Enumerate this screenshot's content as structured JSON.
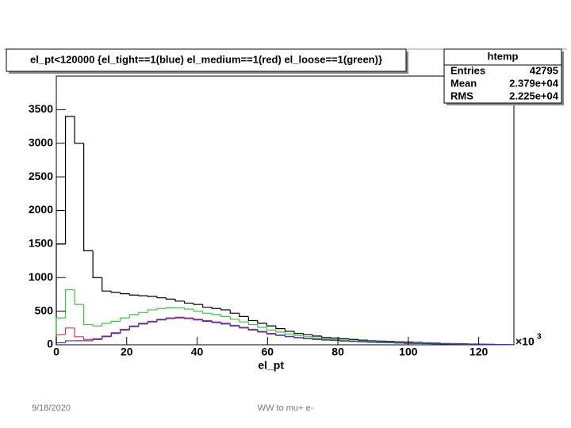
{
  "chart_data": {
    "type": "histogram",
    "title": "el_pt<120000 {el_tight==1(blue) el_medium==1(red) el_loose==1(green)}",
    "x_label": "el_pt",
    "x_multiplier": "×10",
    "x_multiplier_exponent": "3",
    "stats": {
      "name": "htemp",
      "labels": [
        "Entries",
        "Mean",
        "RMS"
      ],
      "values": [
        42795,
        "2.379e+04",
        "2.225e+04"
      ]
    },
    "bins": [
      0,
      2.6,
      5.2,
      7.8,
      10.4,
      13,
      15.6,
      18.2,
      20.8,
      23.4,
      26,
      28.6,
      31.2,
      33.8,
      36.4,
      39,
      41.6,
      44.2,
      46.8,
      49.4,
      52,
      54.6,
      57.2,
      59.8,
      62.4,
      65,
      67.6,
      70.2,
      72.8,
      75.4,
      78,
      80.6,
      83.2,
      85.8,
      88.4,
      91,
      93.6,
      96.2,
      98.8,
      101.4,
      104,
      106.6,
      109.2,
      111.8,
      114.4,
      117,
      119.6,
      122.2,
      124.8,
      127.4,
      130
    ],
    "series": [
      {
        "color": "#000000",
        "values": [
          1500,
          3400,
          3000,
          1400,
          1000,
          800,
          780,
          760,
          740,
          730,
          720,
          700,
          680,
          650,
          620,
          600,
          560,
          540,
          520,
          470,
          420,
          360,
          320,
          280,
          240,
          200,
          170,
          150,
          130,
          110,
          100,
          90,
          80,
          70,
          60,
          55,
          50,
          45,
          40,
          35,
          30,
          25,
          20,
          18,
          15,
          12,
          10,
          8,
          5,
          3
        ]
      },
      {
        "color": "#33cc33",
        "values": [
          400,
          820,
          600,
          300,
          280,
          320,
          350,
          400,
          450,
          480,
          520,
          540,
          550,
          550,
          530,
          500,
          470,
          450,
          420,
          380,
          340,
          300,
          260,
          220,
          190,
          160,
          140,
          120,
          100,
          90,
          80,
          70,
          60,
          55,
          50,
          45,
          40,
          35,
          30,
          28,
          25,
          20,
          18,
          15,
          12,
          10,
          8,
          6,
          4,
          2
        ]
      },
      {
        "color": "#e0303a",
        "values": [
          150,
          250,
          120,
          80,
          90,
          130,
          180,
          230,
          280,
          320,
          350,
          380,
          400,
          410,
          400,
          380,
          360,
          340,
          320,
          290,
          260,
          230,
          200,
          170,
          145,
          125,
          110,
          95,
          85,
          75,
          68,
          60,
          52,
          46,
          40,
          36,
          32,
          28,
          24,
          22,
          20,
          17,
          14,
          12,
          10,
          8,
          6,
          5,
          3,
          2
        ]
      },
      {
        "color": "#3030d0",
        "values": [
          30,
          60,
          60,
          60,
          80,
          120,
          170,
          220,
          270,
          310,
          340,
          370,
          390,
          400,
          390,
          370,
          350,
          330,
          310,
          280,
          250,
          220,
          190,
          160,
          140,
          120,
          105,
          90,
          80,
          70,
          64,
          56,
          50,
          44,
          38,
          34,
          30,
          26,
          22,
          20,
          18,
          15,
          13,
          11,
          9,
          7,
          5,
          4,
          3,
          2
        ]
      }
    ],
    "xlim": [
      0,
      130
    ],
    "xticks": [
      0,
      20,
      40,
      60,
      80,
      100,
      120
    ],
    "ylim": [
      0,
      4000
    ],
    "yticks": [
      0,
      500,
      1000,
      1500,
      2000,
      2500,
      3000,
      3500
    ]
  },
  "footer": {
    "date": "9/18/2020",
    "title": "WW to mu+ e-"
  }
}
